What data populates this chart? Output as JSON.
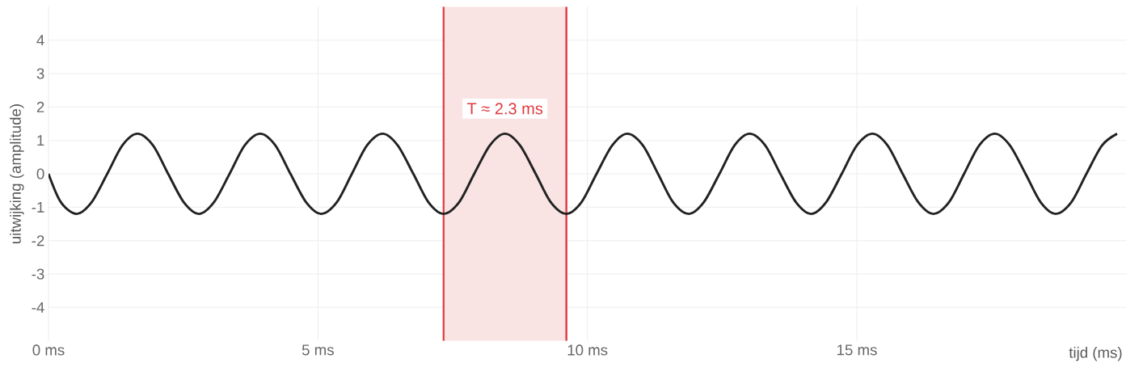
{
  "chart_data": {
    "type": "line",
    "xlabel": "tijd (ms)",
    "ylabel": "uitwijking (amplitude)",
    "x": [
      0,
      0.23,
      0.52,
      0.8,
      1.09,
      1.37,
      1.65,
      1.94,
      2.22,
      2.51,
      2.79,
      3.07,
      3.36,
      3.64,
      3.93,
      4.21,
      4.49,
      4.78,
      5.06,
      5.35,
      5.63,
      5.91,
      6.2,
      6.48,
      6.77,
      7.05,
      7.33,
      7.62,
      7.9,
      8.19,
      8.47,
      8.75,
      9.04,
      9.32,
      9.61,
      9.89,
      10.17,
      10.46,
      10.74,
      11.03,
      11.31,
      11.59,
      11.88,
      12.16,
      12.45,
      12.73,
      13.01,
      13.3,
      13.58,
      13.87,
      14.15,
      14.43,
      14.72,
      15.0,
      15.29,
      15.57,
      15.85,
      16.14,
      16.42,
      16.71,
      16.99,
      17.27,
      17.56,
      17.84,
      18.13,
      18.41,
      18.69,
      18.98,
      19.26,
      19.55,
      19.83
    ],
    "series": [
      {
        "color": "#222222",
        "values": [
          0,
          -0.85,
          -1.2,
          -0.85,
          0,
          0.85,
          1.2,
          0.85,
          0,
          -0.85,
          -1.2,
          -0.85,
          0,
          0.85,
          1.2,
          0.85,
          0,
          -0.85,
          -1.2,
          -0.85,
          0,
          0.85,
          1.2,
          0.85,
          0,
          -0.85,
          -1.2,
          -0.85,
          0,
          0.85,
          1.2,
          0.85,
          0,
          -0.85,
          -1.2,
          -0.85,
          0,
          0.85,
          1.2,
          0.85,
          0,
          -0.85,
          -1.2,
          -0.85,
          0,
          0.85,
          1.2,
          0.85,
          0,
          -0.85,
          -1.2,
          -0.85,
          0,
          0.85,
          1.2,
          0.85,
          0,
          -0.85,
          -1.2,
          -0.85,
          0,
          0.85,
          1.2,
          0.85,
          0,
          -0.85,
          -1.2,
          -0.85,
          0,
          0.85,
          1.2
        ]
      }
    ],
    "xlim": [
      0,
      20
    ],
    "ylim": [
      -5,
      5
    ],
    "xticks": [
      {
        "value": 0,
        "label": "0 ms"
      },
      {
        "value": 5,
        "label": "5 ms"
      },
      {
        "value": 10,
        "label": "10 ms"
      },
      {
        "value": 15,
        "label": "15 ms"
      }
    ],
    "yticks": [
      -4,
      -3,
      -2,
      -1,
      0,
      1,
      2,
      3,
      4
    ],
    "bands": [
      {
        "axis": "x",
        "from": 7.33,
        "to": 9.61,
        "label": "T ≈ 2.3 ms",
        "color": "#f9e3e3"
      }
    ],
    "ref_lines": [
      {
        "axis": "x",
        "value": 7.33,
        "color": "#e0393e"
      },
      {
        "axis": "x",
        "value": 9.61,
        "color": "#e0393e"
      }
    ],
    "grid": true,
    "legend": false,
    "marker": "none",
    "line_style": "solid"
  }
}
